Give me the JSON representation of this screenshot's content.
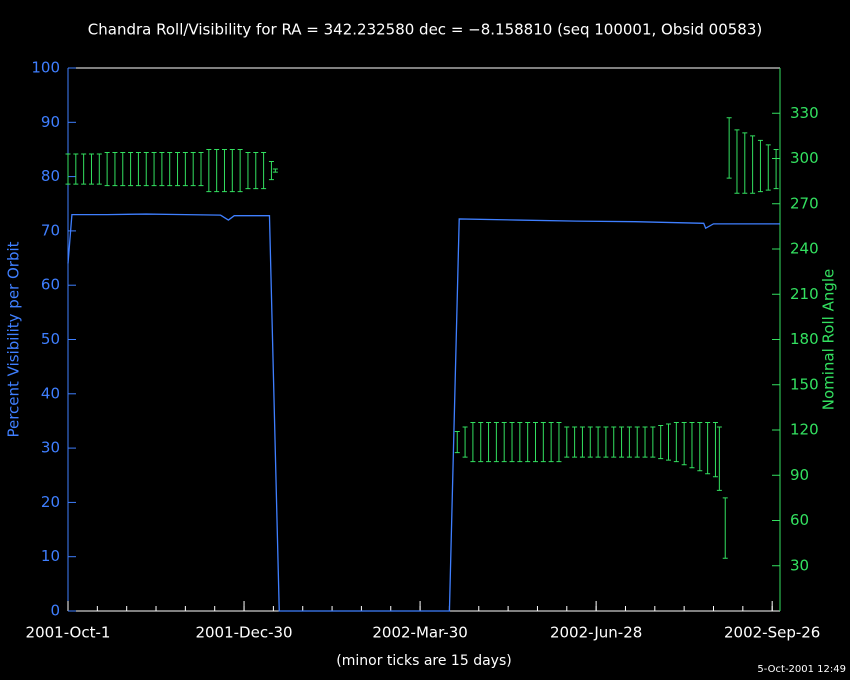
{
  "chart_data": {
    "type": "line",
    "title": "Chandra Roll/Visibility for RA = 342.232580 dec = −8.158810 (seq 100001, Obsid 00583)",
    "timestamp": "5-Oct-2001 12:49",
    "xlabel": "(minor ticks are 15 days)",
    "ylabel": "Percent Visibility per Orbit",
    "y2label": "Nominal Roll Angle",
    "xlim": [
      0,
      364
    ],
    "xticks": [
      {
        "value": 0,
        "label": "2001-Oct-1"
      },
      {
        "value": 90,
        "label": "2001-Dec-30"
      },
      {
        "value": 180,
        "label": "2002-Mar-30"
      },
      {
        "value": 270,
        "label": "2002-Jun-28"
      },
      {
        "value": 360,
        "label": "2002-Sep-26"
      }
    ],
    "xminor": 15,
    "ylim": [
      0,
      100
    ],
    "yticks": [
      0,
      10,
      20,
      30,
      40,
      50,
      60,
      70,
      80,
      90,
      100
    ],
    "y2lim": [
      0,
      360
    ],
    "y2ticks": [
      30,
      60,
      90,
      120,
      150,
      180,
      210,
      240,
      270,
      300,
      330
    ],
    "left_axis_color": "#3f7fff",
    "right_axis_color": "#33e060",
    "series": [
      {
        "type": "line",
        "color": "#3f7fff",
        "x": [
          0,
          2,
          20,
          40,
          60,
          78,
          82,
          85,
          100,
          103,
          108,
          195,
          200,
          230,
          260,
          290,
          325,
          326,
          330,
          364
        ],
        "values": [
          64,
          73,
          73,
          73.1,
          73,
          72.9,
          72,
          72.8,
          72.8,
          72.8,
          0,
          0,
          72.2,
          72,
          71.8,
          71.7,
          71.4,
          70.5,
          71.3,
          71.3
        ]
      },
      {
        "type": "errorbar",
        "axis": "y2",
        "color": "#33e060",
        "x": [
          0,
          4,
          8,
          12,
          16,
          20,
          24,
          28,
          32,
          36,
          40,
          44,
          48,
          52,
          56,
          60,
          64,
          68,
          72,
          76,
          80,
          84,
          88,
          92,
          96,
          100,
          104,
          106,
          199,
          203,
          207,
          211,
          215,
          219,
          223,
          227,
          231,
          235,
          239,
          243,
          247,
          251,
          255,
          259,
          263,
          267,
          271,
          275,
          279,
          283,
          287,
          291,
          295,
          299,
          303,
          307,
          311,
          315,
          319,
          323,
          327,
          331,
          333,
          336,
          338,
          342,
          346,
          350,
          354,
          358,
          362
        ],
        "values": [
          293,
          293,
          293,
          293,
          293,
          293,
          293,
          293,
          293,
          293,
          293,
          293,
          293,
          293,
          293,
          293,
          293,
          293,
          292,
          292,
          292,
          292,
          292,
          292,
          292,
          292,
          292,
          292,
          112,
          112,
          112,
          112,
          112,
          112,
          112,
          112,
          112,
          112,
          112,
          112,
          112,
          112,
          112,
          112,
          112,
          112,
          112,
          112,
          112,
          112,
          112,
          112,
          112,
          112,
          112,
          112,
          112,
          111,
          110,
          109,
          108,
          107,
          101,
          55,
          307,
          298,
          297,
          296,
          295,
          294,
          293
        ],
        "errors": [
          10,
          10,
          10,
          10,
          10,
          11,
          11,
          11,
          11,
          11,
          11,
          11,
          11,
          11,
          11,
          11,
          11,
          11,
          14,
          14,
          14,
          14,
          14,
          12,
          12,
          12,
          6,
          1,
          7,
          10,
          13,
          13,
          13,
          13,
          13,
          13,
          13,
          13,
          13,
          13,
          13,
          13,
          10,
          10,
          10,
          10,
          10,
          10,
          10,
          10,
          10,
          10,
          10,
          10,
          11,
          12,
          13,
          14,
          15,
          16,
          17,
          18,
          21,
          20,
          20,
          21,
          20,
          19,
          17,
          15,
          13
        ]
      }
    ]
  }
}
